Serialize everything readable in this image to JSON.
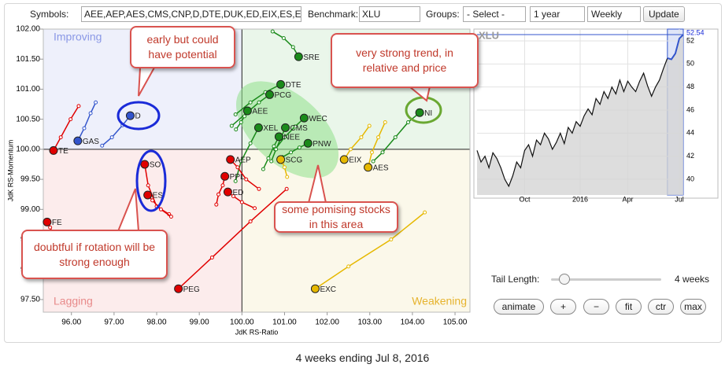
{
  "toolbar": {
    "symbols_label": "Symbols:",
    "symbols": "AEE,AEP,AES,CMS,CNP,D,DTE,DUK,ED,EIX,ES,E",
    "benchmark_label": "Benchmark:",
    "benchmark": "XLU",
    "groups_label": "Groups:",
    "groups": "- Select -",
    "period": "1 year",
    "interval": "Weekly",
    "update": "Update"
  },
  "chart_data": [
    {
      "type": "scatter",
      "xlabel": "JdK RS-Ratio",
      "ylabel": "JdK RS-Momentum",
      "quadrants": {
        "improving": "Improving",
        "lagging": "Lagging",
        "weakening": "Weakening"
      },
      "center": {
        "x": 100,
        "y": 100
      },
      "xlim": [
        95.34,
        105.35
      ],
      "ylim": [
        97.29,
        102.0
      ],
      "xticks": [
        {
          "value": 96,
          "label": "96.00"
        },
        {
          "value": 97,
          "label": "97.00"
        },
        {
          "value": 98,
          "label": "98.00"
        },
        {
          "value": 99,
          "label": "99.00"
        },
        {
          "value": 100,
          "label": "100.00"
        },
        {
          "value": 101,
          "label": "101.00"
        },
        {
          "value": 102,
          "label": "102.00"
        },
        {
          "value": 103,
          "label": "103.00"
        },
        {
          "value": 104,
          "label": "104.00"
        },
        {
          "value": 105,
          "label": "105.00"
        }
      ],
      "yticks": [
        {
          "value": 97.5,
          "label": "97.50"
        },
        {
          "value": 98,
          "label": "98.00"
        },
        {
          "value": 98.5,
          "label": "98.50"
        },
        {
          "value": 99,
          "label": "99.00"
        },
        {
          "value": 99.5,
          "label": "99.50"
        },
        {
          "value": 100,
          "label": "100.00"
        },
        {
          "value": 100.5,
          "label": "100.50"
        },
        {
          "value": 101,
          "label": "101.00"
        },
        {
          "value": 101.5,
          "label": "101.50"
        },
        {
          "value": 102,
          "label": "102.00"
        }
      ],
      "series": [
        {
          "name": "SRE",
          "color": "#1a8a1a",
          "x": [
            100.72,
            100.98,
            101.2,
            101.33
          ],
          "y": [
            101.96,
            101.85,
            101.7,
            101.54
          ]
        },
        {
          "name": "DTE",
          "color": "#1a8a1a",
          "x": [
            99.85,
            100.2,
            100.55,
            100.91
          ],
          "y": [
            100.58,
            100.78,
            100.95,
            101.08
          ]
        },
        {
          "name": "PCG",
          "color": "#1a8a1a",
          "x": [
            99.76,
            100.1,
            100.4,
            100.65
          ],
          "y": [
            100.39,
            100.6,
            100.78,
            100.91
          ]
        },
        {
          "name": "AEE",
          "color": "#1a8a1a",
          "x": [
            99.86,
            99.98,
            100.06,
            100.13
          ],
          "y": [
            100.33,
            100.45,
            100.55,
            100.64
          ]
        },
        {
          "name": "WEC",
          "color": "#1a8a1a",
          "x": [
            100.78,
            101.0,
            101.25,
            101.46
          ],
          "y": [
            100.0,
            100.2,
            100.38,
            100.52
          ]
        },
        {
          "name": "XEL",
          "color": "#1a8a1a",
          "x": [
            99.85,
            99.98,
            100.2,
            100.39
          ],
          "y": [
            99.47,
            99.8,
            100.1,
            100.36
          ]
        },
        {
          "name": "CMS",
          "color": "#1a8a1a",
          "x": [
            100.69,
            100.8,
            100.92,
            101.02
          ],
          "y": [
            99.8,
            100.0,
            100.2,
            100.36
          ]
        },
        {
          "name": "NEE",
          "color": "#1a8a1a",
          "x": [
            100.5,
            100.62,
            100.75,
            100.87
          ],
          "y": [
            99.67,
            99.85,
            100.05,
            100.21
          ]
        },
        {
          "name": "PNW",
          "color": "#1a8a1a",
          "x": [
            100.95,
            101.15,
            101.35,
            101.55
          ],
          "y": [
            99.87,
            99.95,
            100.03,
            100.1
          ]
        },
        {
          "name": "NI",
          "color": "#1a8a1a",
          "x": [
            103.08,
            103.3,
            103.6,
            103.9,
            104.17
          ],
          "y": [
            99.8,
            99.95,
            100.2,
            100.45,
            100.61
          ]
        },
        {
          "name": "D",
          "color": "#3355cc",
          "x": [
            96.72,
            96.95,
            97.2,
            97.38
          ],
          "y": [
            100.06,
            100.2,
            100.4,
            100.56
          ]
        },
        {
          "name": "GAS",
          "color": "#3355cc",
          "x": [
            96.57,
            96.45,
            96.3,
            96.15
          ],
          "y": [
            100.78,
            100.6,
            100.35,
            100.14
          ]
        },
        {
          "name": "TE",
          "color": "#e00000",
          "x": [
            96.17,
            95.98,
            95.75,
            95.58
          ],
          "y": [
            100.72,
            100.5,
            100.2,
            99.98
          ]
        },
        {
          "name": "SO",
          "color": "#e00000",
          "x": [
            98.29,
            98.0,
            97.8,
            97.72
          ],
          "y": [
            98.92,
            99.05,
            99.4,
            99.75
          ]
        },
        {
          "name": "ES",
          "color": "#e00000",
          "x": [
            98.34,
            98.1,
            97.9,
            97.79
          ],
          "y": [
            98.88,
            99.0,
            99.15,
            99.24
          ]
        },
        {
          "name": "FE",
          "color": "#e00000",
          "x": [
            95.6,
            95.5,
            95.43
          ],
          "y": [
            98.55,
            98.7,
            98.79
          ]
        },
        {
          "name": "PEG",
          "color": "#e00000",
          "x": [
            101.05,
            100.2,
            99.3,
            98.51
          ],
          "y": [
            99.34,
            98.8,
            98.2,
            97.68
          ]
        },
        {
          "name": "AEP",
          "color": "#e00000",
          "x": [
            100.4,
            100.1,
            99.9,
            99.73
          ],
          "y": [
            99.34,
            99.5,
            99.7,
            99.83
          ]
        },
        {
          "name": "PPL",
          "color": "#e00000",
          "x": [
            99.4,
            99.45,
            99.55,
            99.6
          ],
          "y": [
            99.08,
            99.25,
            99.4,
            99.55
          ]
        },
        {
          "name": "ED",
          "color": "#e00000",
          "x": [
            100.3,
            100.0,
            99.8,
            99.67
          ],
          "y": [
            99.02,
            99.12,
            99.22,
            99.29
          ]
        },
        {
          "name": "SCG",
          "color": "#e6b800",
          "x": [
            101.06,
            101.0,
            100.95,
            100.91
          ],
          "y": [
            99.54,
            99.7,
            99.78,
            99.83
          ]
        },
        {
          "name": "EIX",
          "color": "#e6b800",
          "x": [
            102.99,
            102.8,
            102.55,
            102.4
          ],
          "y": [
            100.39,
            100.2,
            100.0,
            99.83
          ]
        },
        {
          "name": "AES",
          "color": "#e6b800",
          "x": [
            103.36,
            103.2,
            103.05,
            102.96
          ],
          "y": [
            100.45,
            100.2,
            99.95,
            99.7
          ]
        },
        {
          "name": "EXC",
          "color": "#e6b800",
          "x": [
            104.29,
            103.5,
            102.5,
            101.72
          ],
          "y": [
            98.95,
            98.5,
            98.05,
            97.68
          ]
        }
      ],
      "annotations": [
        "early but could have potential",
        "very strong trend, in relative and price",
        "some pomising stocks in this area",
        "doubtful if rotation will be strong enough"
      ]
    },
    {
      "type": "line",
      "title": "XLU",
      "color": "#111111",
      "highlight_color": "#3355cc",
      "categories": [
        null,
        null,
        null,
        null,
        null,
        null,
        null,
        null,
        null,
        null,
        null,
        null,
        "Oct",
        null,
        null,
        null,
        null,
        null,
        null,
        null,
        null,
        null,
        null,
        null,
        null,
        null,
        "2016",
        null,
        null,
        null,
        null,
        null,
        null,
        null,
        null,
        null,
        null,
        null,
        "Apr",
        null,
        null,
        null,
        null,
        null,
        null,
        null,
        null,
        null,
        null,
        null,
        null,
        "Jul",
        null
      ],
      "values": [
        42.5,
        41.5,
        42.0,
        41.0,
        42.3,
        41.8,
        41.0,
        40.0,
        39.4,
        40.3,
        41.5,
        41.0,
        42.5,
        43.0,
        42.0,
        43.4,
        43.0,
        44.0,
        43.5,
        42.6,
        43.2,
        44.0,
        43.1,
        44.5,
        44.0,
        45.0,
        44.6,
        45.5,
        46.1,
        45.6,
        47.0,
        46.5,
        47.6,
        47.0,
        48.0,
        47.4,
        48.6,
        47.6,
        48.5,
        48.0,
        47.6,
        48.5,
        49.2,
        48.1,
        47.2,
        48.0,
        48.6,
        49.6,
        50.5,
        50.4,
        50.9,
        52.2,
        52.54
      ],
      "ylim": [
        38.64,
        53.02
      ],
      "yticks": [
        40,
        42,
        44,
        46,
        48,
        50,
        52
      ]
    }
  ],
  "controls": {
    "tail_label": "Tail Length:",
    "tail_value": "4 weeks",
    "buttons": [
      "animate",
      "+",
      "−",
      "fit",
      "ctr",
      "max"
    ]
  },
  "footer": "4 weeks ending Jul 8, 2016"
}
